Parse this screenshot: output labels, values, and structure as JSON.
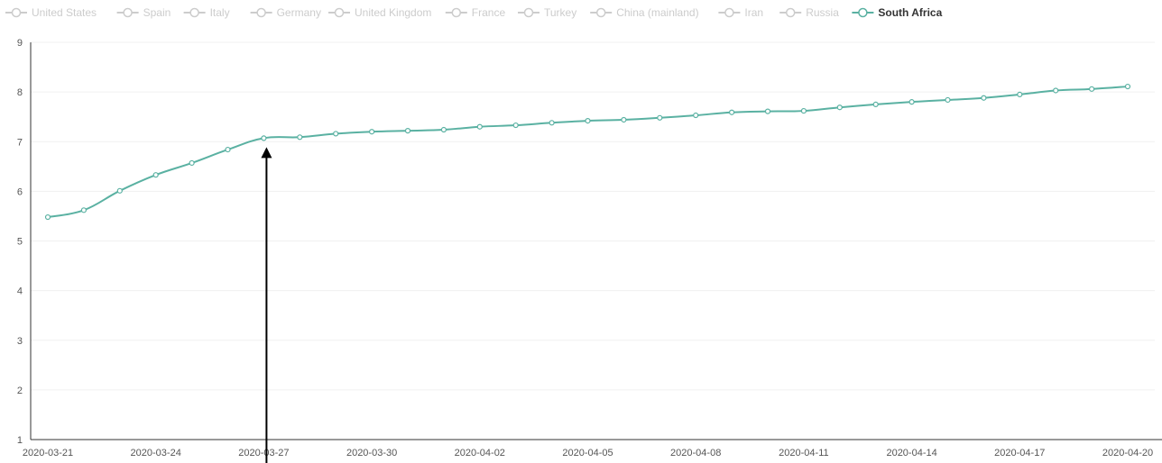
{
  "chart_data": {
    "type": "line",
    "title": "",
    "xlabel": "",
    "ylabel": "",
    "ylim": [
      1,
      9
    ],
    "yticks": [
      1,
      2,
      3,
      4,
      5,
      6,
      7,
      8,
      9
    ],
    "grid": true,
    "legend_position": "top",
    "x_tick_labels": [
      "2020-03-21",
      "2020-03-24",
      "2020-03-27",
      "2020-03-30",
      "2020-04-02",
      "2020-04-05",
      "2020-04-08",
      "2020-04-11",
      "2020-04-14",
      "2020-04-17",
      "2020-04-20"
    ],
    "x": [
      "2020-03-21",
      "2020-03-22",
      "2020-03-23",
      "2020-03-24",
      "2020-03-25",
      "2020-03-26",
      "2020-03-27",
      "2020-03-28",
      "2020-03-29",
      "2020-03-30",
      "2020-03-31",
      "2020-04-01",
      "2020-04-02",
      "2020-04-03",
      "2020-04-04",
      "2020-04-05",
      "2020-04-06",
      "2020-04-07",
      "2020-04-08",
      "2020-04-09",
      "2020-04-10",
      "2020-04-11",
      "2020-04-12",
      "2020-04-13",
      "2020-04-14",
      "2020-04-15",
      "2020-04-16",
      "2020-04-17",
      "2020-04-18",
      "2020-04-19",
      "2020-04-20"
    ],
    "legend": [
      {
        "name": "United States",
        "active": false
      },
      {
        "name": "Spain",
        "active": false
      },
      {
        "name": "Italy",
        "active": false
      },
      {
        "name": "Germany",
        "active": false
      },
      {
        "name": "United Kingdom",
        "active": false
      },
      {
        "name": "France",
        "active": false
      },
      {
        "name": "Turkey",
        "active": false
      },
      {
        "name": "China (mainland)",
        "active": false
      },
      {
        "name": "Iran",
        "active": false
      },
      {
        "name": "Russia",
        "active": false
      },
      {
        "name": "South Africa",
        "active": true
      }
    ],
    "series": [
      {
        "name": "South Africa",
        "color": "#5ab1a2",
        "values": [
          5.48,
          5.62,
          6.01,
          6.33,
          6.57,
          6.84,
          7.07,
          7.09,
          7.16,
          7.2,
          7.22,
          7.24,
          7.3,
          7.33,
          7.38,
          7.42,
          7.44,
          7.48,
          7.53,
          7.59,
          7.61,
          7.62,
          7.69,
          7.75,
          7.8,
          7.84,
          7.88,
          7.95,
          8.03,
          8.06,
          8.11
        ]
      }
    ],
    "annotation": {
      "type": "arrow",
      "target_x": "2020-03-27"
    }
  },
  "colors": {
    "active_series": "#5ab1a2",
    "inactive_legend": "#cccccc",
    "axis": "#333333",
    "grid": "#f0f0f0",
    "arrow": "#000000"
  }
}
